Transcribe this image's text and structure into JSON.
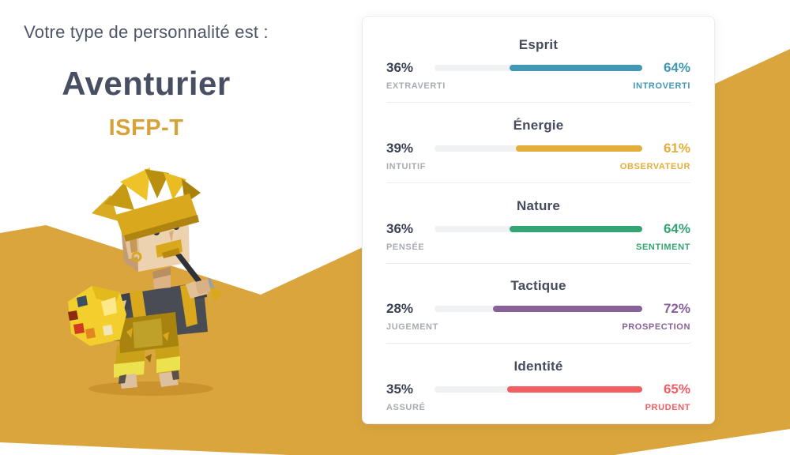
{
  "left_panel": {
    "intro": "Votre type de personnalité est :",
    "type_name": "Aventurier",
    "type_code": "ISFP-T"
  },
  "traits": [
    {
      "title": "Esprit",
      "left_pct": "36%",
      "right_pct": "64%",
      "left_label": "EXTRAVERTI",
      "right_label": "INTROVERTI",
      "color": "#4298b4",
      "value_right": 64
    },
    {
      "title": "Énergie",
      "left_pct": "39%",
      "right_pct": "61%",
      "left_label": "INTUITIF",
      "right_label": "OBSERVATEUR",
      "color": "#e4ae3a",
      "value_right": 61
    },
    {
      "title": "Nature",
      "left_pct": "36%",
      "right_pct": "64%",
      "left_label": "PENSÉE",
      "right_label": "SENTIMENT",
      "color": "#33a474",
      "value_right": 64
    },
    {
      "title": "Tactique",
      "left_pct": "28%",
      "right_pct": "72%",
      "left_label": "JUGEMENT",
      "right_label": "PROSPECTION",
      "color": "#88619a",
      "value_right": 72
    },
    {
      "title": "Identité",
      "left_pct": "35%",
      "right_pct": "65%",
      "left_label": "ASSURÉ",
      "right_label": "PRUDENT",
      "color": "#f25e62",
      "value_right": 65
    }
  ],
  "colors": {
    "background_gold": "#d9a53c",
    "headline_text": "#4f5568",
    "type_name_text": "#484f63",
    "type_code_text": "#d8a23a",
    "bar_track": "#f0f1f3",
    "left_label_gray": "#a7abb2"
  },
  "illustration": {
    "name": "adventurer-papercraft-character"
  }
}
